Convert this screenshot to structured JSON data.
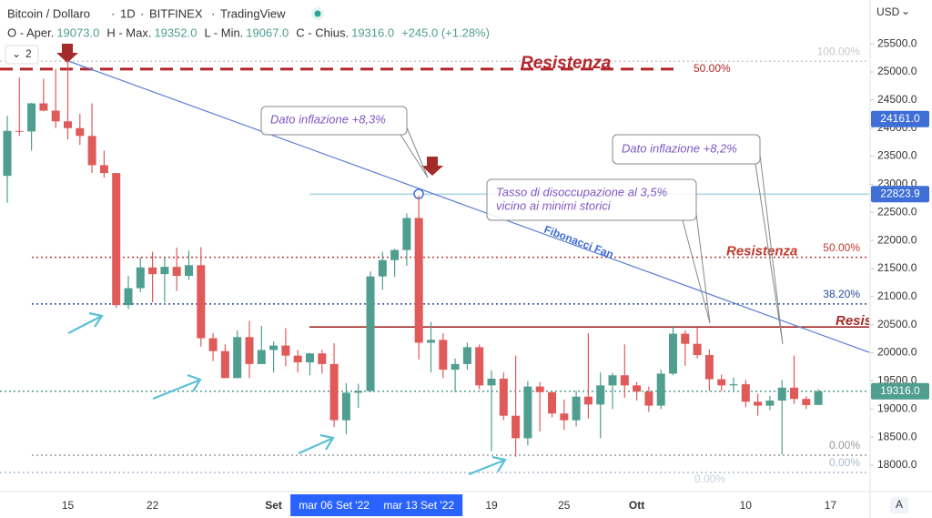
{
  "chart_data": {
    "type": "candlestick",
    "header": {
      "symbol": "Bitcoin / Dollaro",
      "interval": "1D",
      "exchange": "BITFINEX",
      "source": "TradingView",
      "ohlc": [
        {
          "label": "O - Aper.",
          "value": "19073.0"
        },
        {
          "label": "H - Max.",
          "value": "19352.0"
        },
        {
          "label": "L - Min.",
          "value": "19067.0"
        },
        {
          "label": "C - Chius.",
          "value": "19316.0"
        }
      ],
      "change": "+245.0 (+1.28%)",
      "layout_count": "2"
    },
    "currency": "USD",
    "auto_button": "A",
    "up_color": "#4f9e8f",
    "down_color": "#e05a5a",
    "categories": [
      null,
      null,
      null,
      null,
      null,
      "15",
      null,
      null,
      null,
      null,
      null,
      null,
      "22",
      null,
      null,
      null,
      null,
      null,
      null,
      null,
      null,
      null,
      "Set",
      null,
      null,
      null,
      null,
      null,
      null,
      null,
      null,
      null,
      null,
      null,
      null,
      null,
      null,
      null,
      null,
      null,
      "19",
      null,
      null,
      null,
      null,
      null,
      "25",
      null,
      null,
      null,
      null,
      null,
      "Ott",
      null,
      null,
      null,
      null,
      null,
      null,
      null,
      null,
      "10",
      null,
      null,
      null,
      null,
      null,
      null,
      "17"
    ],
    "open": [
      23150,
      23950,
      23940,
      24440,
      24310,
      24120,
      24000,
      23860,
      23340,
      23200,
      20850,
      21150,
      21520,
      21400,
      21530,
      21370,
      21560,
      20260,
      20030,
      19550,
      20280,
      19800,
      20050,
      20130,
      19950,
      19830,
      19990,
      19800,
      18800,
      19290,
      19320,
      21360,
      21650,
      21830,
      22400,
      20180,
      20230,
      19700,
      19800,
      20100,
      19420,
      19540,
      18880,
      18480,
      19400,
      19300,
      18920,
      18800,
      19220,
      19080,
      19420,
      19600,
      19420,
      19310,
      19060,
      19630,
      20340,
      20160,
      19960,
      19530,
      19420,
      19440,
      19130,
      19060,
      19150,
      19380,
      19180,
      19073,
      null
    ],
    "high": [
      24220,
      24900,
      24450,
      24880,
      25050,
      25210,
      24250,
      24440,
      23600,
      23200,
      21370,
      21700,
      21800,
      21700,
      21870,
      21820,
      21880,
      20350,
      20150,
      20400,
      20570,
      20480,
      20200,
      20440,
      20050,
      20000,
      20050,
      20170,
      19460,
      19450,
      21450,
      21800,
      21850,
      22480,
      22800,
      20550,
      20350,
      19900,
      20180,
      20150,
      19690,
      19650,
      19950,
      19500,
      19480,
      19300,
      19170,
      19320,
      20350,
      19650,
      19640,
      20150,
      19480,
      19400,
      19700,
      20480,
      20400,
      20450,
      20060,
      19610,
      19560,
      19520,
      19270,
      19230,
      19520,
      19950,
      19230,
      19352,
      null
    ],
    "low": [
      22670,
      23860,
      23600,
      24300,
      24000,
      23800,
      23700,
      23200,
      23120,
      20800,
      20780,
      21080,
      20900,
      20900,
      21100,
      21300,
      20110,
      19850,
      19550,
      19550,
      19550,
      19800,
      19650,
      19760,
      19650,
      19600,
      19630,
      18680,
      18550,
      19020,
      19300,
      21120,
      21350,
      21550,
      19880,
      19650,
      19550,
      19300,
      19700,
      19350,
      18250,
      18800,
      18150,
      18350,
      18600,
      18850,
      18630,
      18690,
      18830,
      18480,
      19000,
      19200,
      19150,
      18950,
      19000,
      19600,
      19770,
      19900,
      19320,
      19320,
      19330,
      19030,
      18880,
      18980,
      18190,
      19090,
      19000,
      19067,
      null
    ],
    "close": [
      23950,
      23940,
      24440,
      24310,
      24120,
      24000,
      23860,
      23340,
      23200,
      20850,
      21150,
      21520,
      21400,
      21530,
      21370,
      21560,
      20260,
      20030,
      19550,
      20280,
      19800,
      20050,
      20130,
      19950,
      19830,
      19990,
      19800,
      18800,
      19290,
      19320,
      21360,
      21650,
      21830,
      22400,
      20180,
      20230,
      19700,
      19800,
      20100,
      19420,
      19540,
      18880,
      18480,
      19400,
      19300,
      18920,
      18800,
      19220,
      19080,
      19420,
      19600,
      19420,
      19310,
      19060,
      19630,
      20340,
      20160,
      19960,
      19530,
      19420,
      19440,
      19130,
      19060,
      19150,
      19380,
      19180,
      19070,
      19316,
      null
    ],
    "crosshair_labels": [
      {
        "category_index": 27,
        "label": "mar 06 Set '22"
      },
      {
        "category_index": 34,
        "label": "mar 13 Set '22"
      }
    ],
    "ylim": [
      17530,
      26280
    ],
    "yticks": [
      {
        "value": 18000,
        "label": "18000.0"
      },
      {
        "value": 18500,
        "label": "18500.0"
      },
      {
        "value": 19000,
        "label": "19000.0"
      },
      {
        "value": 19500,
        "label": "19500.0"
      },
      {
        "value": 20000,
        "label": "20000.0"
      },
      {
        "value": 20500,
        "label": "20500.0"
      },
      {
        "value": 21000,
        "label": "21000.0"
      },
      {
        "value": 21500,
        "label": "21500.0"
      },
      {
        "value": 22000,
        "label": "22000.0"
      },
      {
        "value": 22500,
        "label": "22500.0"
      },
      {
        "value": 23000,
        "label": "23000.0"
      },
      {
        "value": 23500,
        "label": "23500.0"
      },
      {
        "value": 24000,
        "label": "24000.0"
      },
      {
        "value": 24500,
        "label": "24500.0"
      },
      {
        "value": 25000,
        "label": "25000.0"
      },
      {
        "value": 25500,
        "label": "25500.0"
      }
    ],
    "price_markers": [
      {
        "value": 24161,
        "label": "24161.0",
        "color": "#3f6fd6"
      },
      {
        "value": 22823.9,
        "label": "22823.9",
        "color": "#3f6fd6"
      },
      {
        "value": 19316,
        "label": "19316.0",
        "color": "#4f9e8f"
      }
    ],
    "levels": [
      {
        "value": 25190,
        "color": "#c8c8c8",
        "style": "dotted",
        "label": "100.00%"
      },
      {
        "value": 25050,
        "color": "#b3262b",
        "style": "dashed",
        "label": "50.00%",
        "name": "Resistenza"
      },
      {
        "value": 22823.9,
        "color": "#add8e6",
        "style": "solid"
      },
      {
        "value": 21700,
        "color": "#c0392b",
        "style": "dotted",
        "label": "50.00%",
        "name": "Resistenza"
      },
      {
        "value": 20870,
        "color": "#2b4b9b",
        "style": "dotted",
        "label": "38.20%"
      },
      {
        "value": 20460,
        "color": "#a52a2a",
        "style": "solid",
        "name": "Resis"
      },
      {
        "value": 19316,
        "color": "#4f9e8f",
        "style": "dotted"
      },
      {
        "value": 18178,
        "color": "#999999",
        "style": "dotted",
        "label": "0.00%"
      },
      {
        "value": 17870,
        "color": "#a8bcd0",
        "style": "dotted",
        "label": "0.00%",
        "label_below": "0.00%"
      }
    ],
    "fan_label": "Fibonacci Fan",
    "annotations": [
      {
        "lines": [
          "Dato inflazione +8,3%"
        ]
      },
      {
        "lines": [
          "Tasso di disoccupazione al 3,5%",
          "vicino ai minimi storici"
        ]
      },
      {
        "lines": [
          "Dato inflazione +8,2%"
        ]
      }
    ]
  }
}
